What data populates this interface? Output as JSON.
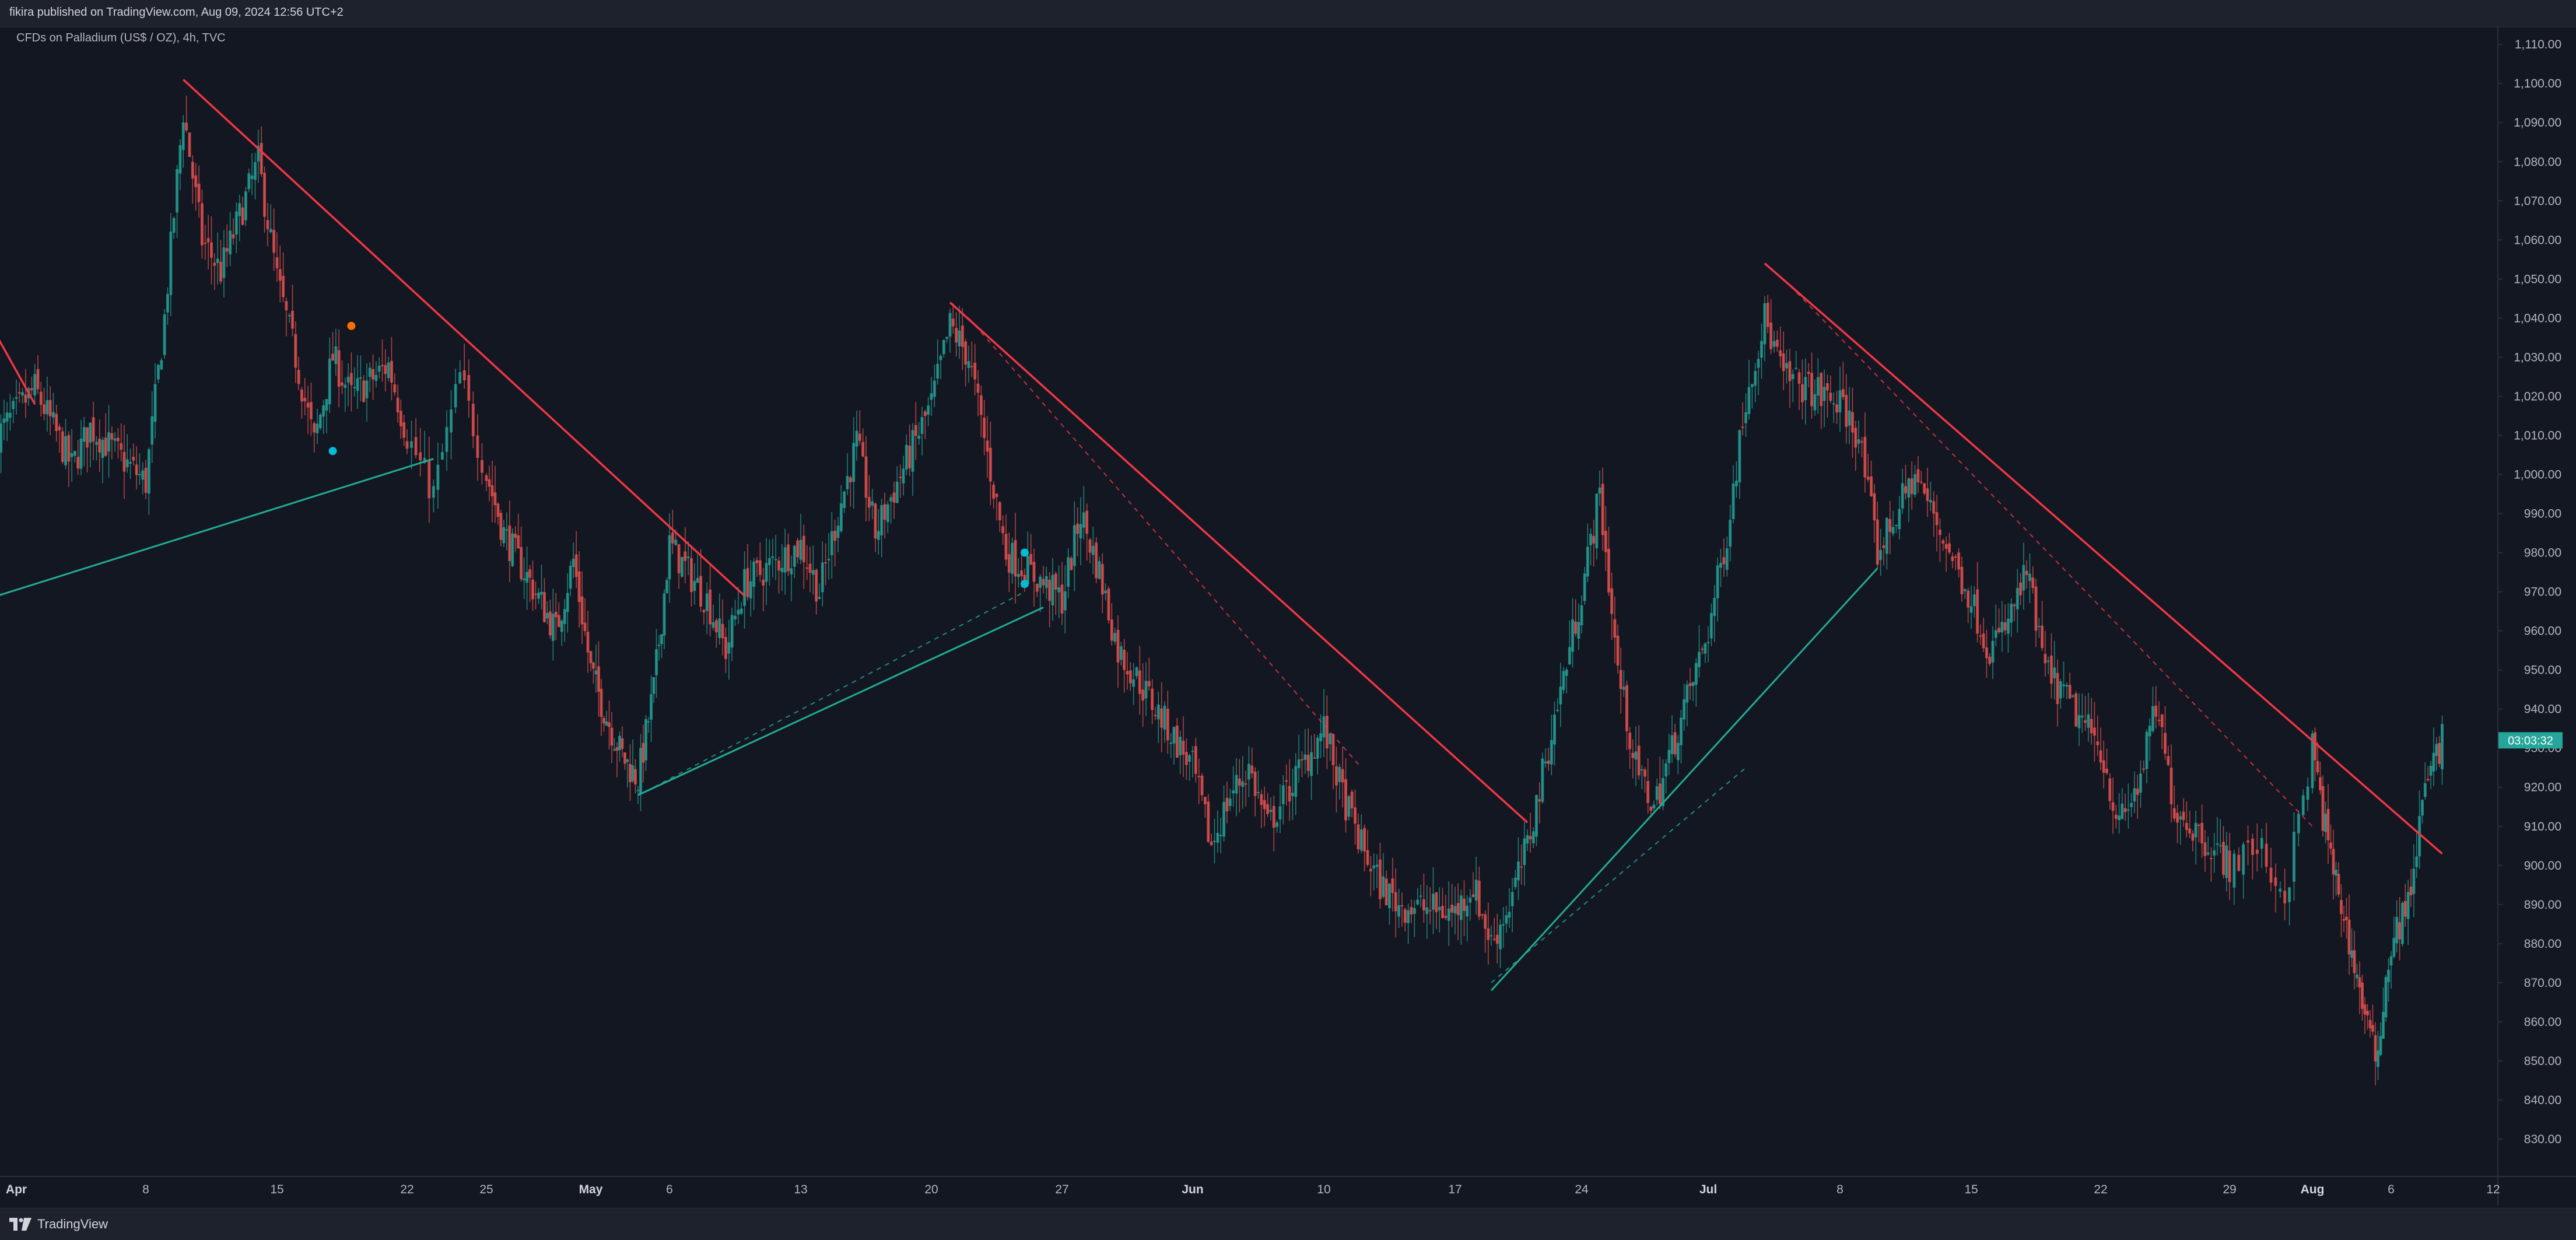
{
  "header": {
    "published": "fikira published on TradingView.com, Aug 09, 2024 12:56 UTC+2"
  },
  "symbol": {
    "label": "CFDs on Palladium (US$ / OZ), 4h, TVC"
  },
  "footer": {
    "brand": "TradingView"
  },
  "colors": {
    "background": "#131722",
    "up": "#26a69a",
    "down": "#ef5350",
    "resistance": "#f23645",
    "support": "#22ab94",
    "marker_cyan": "#00bcd4",
    "marker_orange": "#ff6d00",
    "axis_text": "#b2b5be"
  },
  "chart_data": {
    "type": "candlestick",
    "title": "CFDs on Palladium (US$ / OZ), 4h, TVC",
    "xlabel": "",
    "ylabel": "",
    "ylim": [
      822,
      1116
    ],
    "y_ticks": [
      "830.00",
      "840.00",
      "850.00",
      "860.00",
      "870.00",
      "880.00",
      "890.00",
      "900.00",
      "910.00",
      "920.00",
      "930.00",
      "940.00",
      "950.00",
      "960.00",
      "970.00",
      "980.00",
      "990.00",
      "1,000.00",
      "1,010.00",
      "1,020.00",
      "1,030.00",
      "1,040.00",
      "1,050.00",
      "1,060.00",
      "1,070.00",
      "1,080.00",
      "1,090.00",
      "1,100.00",
      "1,110.00"
    ],
    "x_ticks": [
      {
        "label": "Apr",
        "date": "2024-04-01",
        "bold": true
      },
      {
        "label": "8",
        "date": "2024-04-08",
        "bold": false
      },
      {
        "label": "15",
        "date": "2024-04-15",
        "bold": false
      },
      {
        "label": "22",
        "date": "2024-04-22",
        "bold": false
      },
      {
        "label": "25",
        "date": "2024-04-25",
        "bold": false
      },
      {
        "label": "May",
        "date": "2024-05-01",
        "bold": true
      },
      {
        "label": "6",
        "date": "2024-05-06",
        "bold": false
      },
      {
        "label": "13",
        "date": "2024-05-13",
        "bold": false
      },
      {
        "label": "20",
        "date": "2024-05-20",
        "bold": false
      },
      {
        "label": "27",
        "date": "2024-05-27",
        "bold": false
      },
      {
        "label": "Jun",
        "date": "2024-06-03",
        "bold": true
      },
      {
        "label": "10",
        "date": "2024-06-10",
        "bold": false
      },
      {
        "label": "17",
        "date": "2024-06-17",
        "bold": false
      },
      {
        "label": "24",
        "date": "2024-06-24",
        "bold": false
      },
      {
        "label": "Jul",
        "date": "2024-07-01",
        "bold": true
      },
      {
        "label": "8",
        "date": "2024-07-08",
        "bold": false
      },
      {
        "label": "15",
        "date": "2024-07-15",
        "bold": false
      },
      {
        "label": "22",
        "date": "2024-07-22",
        "bold": false
      },
      {
        "label": "29",
        "date": "2024-07-29",
        "bold": false
      },
      {
        "label": "Aug",
        "date": "2024-08-01",
        "bold": true
      },
      {
        "label": "6",
        "date": "2024-08-06",
        "bold": false
      },
      {
        "label": "12",
        "date": "2024-08-12",
        "bold": false
      }
    ],
    "close_path": [
      {
        "date": "2024-03-31",
        "price": 1010
      },
      {
        "date": "2024-04-02",
        "price": 1022
      },
      {
        "date": "2024-04-04",
        "price": 1002
      },
      {
        "date": "2024-04-05",
        "price": 1012
      },
      {
        "date": "2024-04-08",
        "price": 998
      },
      {
        "date": "2024-04-09",
        "price": 1040
      },
      {
        "date": "2024-04-10",
        "price": 1093
      },
      {
        "date": "2024-04-11",
        "price": 1060
      },
      {
        "date": "2024-04-12",
        "price": 1052
      },
      {
        "date": "2024-04-14",
        "price": 1080
      },
      {
        "date": "2024-04-15",
        "price": 1050
      },
      {
        "date": "2024-04-16",
        "price": 1030
      },
      {
        "date": "2024-04-17",
        "price": 1008
      },
      {
        "date": "2024-04-18",
        "price": 1030
      },
      {
        "date": "2024-04-19",
        "price": 1020
      },
      {
        "date": "2024-04-21",
        "price": 1028
      },
      {
        "date": "2024-04-22",
        "price": 1010
      },
      {
        "date": "2024-04-23",
        "price": 995
      },
      {
        "date": "2024-04-24",
        "price": 1025
      },
      {
        "date": "2024-04-25",
        "price": 1000
      },
      {
        "date": "2024-04-26",
        "price": 985
      },
      {
        "date": "2024-04-29",
        "price": 960
      },
      {
        "date": "2024-04-30",
        "price": 978
      },
      {
        "date": "2024-05-01",
        "price": 950
      },
      {
        "date": "2024-05-02",
        "price": 938
      },
      {
        "date": "2024-05-03",
        "price": 928
      },
      {
        "date": "2024-05-04",
        "price": 922
      },
      {
        "date": "2024-05-05",
        "price": 945
      },
      {
        "date": "2024-05-06",
        "price": 982
      },
      {
        "date": "2024-05-07",
        "price": 975
      },
      {
        "date": "2024-05-08",
        "price": 968
      },
      {
        "date": "2024-05-09",
        "price": 955
      },
      {
        "date": "2024-05-10",
        "price": 972
      },
      {
        "date": "2024-05-13",
        "price": 982
      },
      {
        "date": "2024-05-14",
        "price": 970
      },
      {
        "date": "2024-05-15",
        "price": 990
      },
      {
        "date": "2024-05-16",
        "price": 1008
      },
      {
        "date": "2024-05-17",
        "price": 985
      },
      {
        "date": "2024-05-20",
        "price": 1018
      },
      {
        "date": "2024-05-21",
        "price": 1038
      },
      {
        "date": "2024-05-22",
        "price": 1030
      },
      {
        "date": "2024-05-23",
        "price": 1005
      },
      {
        "date": "2024-05-24",
        "price": 980
      },
      {
        "date": "2024-05-27",
        "price": 968
      },
      {
        "date": "2024-05-28",
        "price": 990
      },
      {
        "date": "2024-05-29",
        "price": 975
      },
      {
        "date": "2024-05-30",
        "price": 955
      },
      {
        "date": "2024-05-31",
        "price": 948
      },
      {
        "date": "2024-06-03",
        "price": 925
      },
      {
        "date": "2024-06-04",
        "price": 905
      },
      {
        "date": "2024-06-05",
        "price": 918
      },
      {
        "date": "2024-06-06",
        "price": 925
      },
      {
        "date": "2024-06-07",
        "price": 910
      },
      {
        "date": "2024-06-10",
        "price": 935
      },
      {
        "date": "2024-06-11",
        "price": 918
      },
      {
        "date": "2024-06-12",
        "price": 905
      },
      {
        "date": "2024-06-13",
        "price": 895
      },
      {
        "date": "2024-06-14",
        "price": 890
      },
      {
        "date": "2024-06-17",
        "price": 888
      },
      {
        "date": "2024-06-18",
        "price": 895
      },
      {
        "date": "2024-06-19",
        "price": 880
      },
      {
        "date": "2024-06-20",
        "price": 890
      },
      {
        "date": "2024-06-21",
        "price": 905
      },
      {
        "date": "2024-06-24",
        "price": 970
      },
      {
        "date": "2024-06-25",
        "price": 995
      },
      {
        "date": "2024-06-26",
        "price": 950
      },
      {
        "date": "2024-06-27",
        "price": 925
      },
      {
        "date": "2024-06-28",
        "price": 915
      },
      {
        "date": "2024-07-01",
        "price": 960
      },
      {
        "date": "2024-07-02",
        "price": 985
      },
      {
        "date": "2024-07-03",
        "price": 1020
      },
      {
        "date": "2024-07-04",
        "price": 1040
      },
      {
        "date": "2024-07-05",
        "price": 1025
      },
      {
        "date": "2024-07-08",
        "price": 1018
      },
      {
        "date": "2024-07-09",
        "price": 1010
      },
      {
        "date": "2024-07-10",
        "price": 980
      },
      {
        "date": "2024-07-11",
        "price": 990
      },
      {
        "date": "2024-07-12",
        "price": 1000
      },
      {
        "date": "2024-07-15",
        "price": 968
      },
      {
        "date": "2024-07-16",
        "price": 955
      },
      {
        "date": "2024-07-17",
        "price": 962
      },
      {
        "date": "2024-07-18",
        "price": 975
      },
      {
        "date": "2024-07-19",
        "price": 950
      },
      {
        "date": "2024-07-22",
        "price": 930
      },
      {
        "date": "2024-07-23",
        "price": 910
      },
      {
        "date": "2024-07-24",
        "price": 920
      },
      {
        "date": "2024-07-25",
        "price": 940
      },
      {
        "date": "2024-07-26",
        "price": 915
      },
      {
        "date": "2024-07-29",
        "price": 900
      },
      {
        "date": "2024-07-30",
        "price": 905
      },
      {
        "date": "2024-07-31",
        "price": 892
      },
      {
        "date": "2024-08-01",
        "price": 930
      },
      {
        "date": "2024-08-02",
        "price": 905
      },
      {
        "date": "2024-08-05",
        "price": 850
      },
      {
        "date": "2024-08-06",
        "price": 880
      },
      {
        "date": "2024-08-07",
        "price": 890
      },
      {
        "date": "2024-08-08",
        "price": 920
      },
      {
        "date": "2024-08-09",
        "price": 932
      }
    ],
    "last_price_label": "03:03:32",
    "resistance_lines": [
      {
        "start": {
          "date": "2024-03-31",
          "price": 1035
        },
        "end": {
          "date": "2024-04-02",
          "price": 1018
        }
      },
      {
        "start": {
          "date": "2024-04-10",
          "price": 1101
        },
        "end": {
          "date": "2024-05-10",
          "price": 969
        }
      },
      {
        "start": {
          "date": "2024-05-21",
          "price": 1044
        },
        "end": {
          "date": "2024-06-21",
          "price": 911
        }
      },
      {
        "start": {
          "date": "2024-07-04",
          "price": 1054
        },
        "end": {
          "date": "2024-08-09",
          "price": 903
        }
      }
    ],
    "support_lines": [
      {
        "start": {
          "date": "2024-03-31",
          "price": 969
        },
        "end": {
          "date": "2024-04-23",
          "price": 1004
        }
      },
      {
        "start": {
          "date": "2024-05-04",
          "price": 918
        },
        "end": {
          "date": "2024-05-26",
          "price": 966
        }
      },
      {
        "start": {
          "date": "2024-06-19",
          "price": 868
        },
        "end": {
          "date": "2024-07-10",
          "price": 976
        }
      }
    ],
    "dashed_lines": [
      {
        "color": "#f23645",
        "start": {
          "date": "2024-05-22",
          "price": 1040
        },
        "end": {
          "date": "2024-06-12",
          "price": 925
        }
      },
      {
        "color": "#f23645",
        "start": {
          "date": "2024-07-05",
          "price": 1050
        },
        "end": {
          "date": "2024-08-01",
          "price": 910
        }
      },
      {
        "color": "#22ab94",
        "start": {
          "date": "2024-05-05",
          "price": 920
        },
        "end": {
          "date": "2024-05-25",
          "price": 970
        }
      },
      {
        "color": "#22ab94",
        "start": {
          "date": "2024-06-19",
          "price": 870
        },
        "end": {
          "date": "2024-07-03",
          "price": 925
        }
      }
    ],
    "markers": [
      {
        "date": "2024-04-19",
        "price": 1038,
        "color": "#ff6d00"
      },
      {
        "date": "2024-04-18",
        "price": 1006,
        "color": "#00bcd4"
      },
      {
        "date": "2024-05-25",
        "price": 980,
        "color": "#00bcd4"
      },
      {
        "date": "2024-05-25",
        "price": 972,
        "color": "#00bcd4"
      }
    ],
    "grid": false,
    "legend": "none"
  }
}
